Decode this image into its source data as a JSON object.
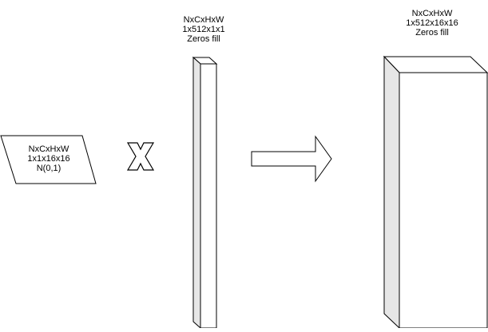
{
  "input_tensor": {
    "label_line1": "NxCxHxW",
    "label_line2": "1x1x16x16",
    "label_line3": "N(0,1)"
  },
  "operator": {
    "symbol": "multiply",
    "icon": "x-mark-icon"
  },
  "vector_tensor": {
    "label_line1": "NxCxHxW",
    "label_line2": "1x512x1x1",
    "label_line3": "Zeros fill"
  },
  "transition": {
    "icon": "right-arrow-icon"
  },
  "output_tensor": {
    "label_line1": "NxCxHxW",
    "label_line2": "1x512x16x16",
    "label_line3": "Zeros fill"
  },
  "colors": {
    "stroke": "#000000",
    "fill_front": "#ffffff",
    "fill_side": "#e6e6e6",
    "text": "#000000"
  }
}
